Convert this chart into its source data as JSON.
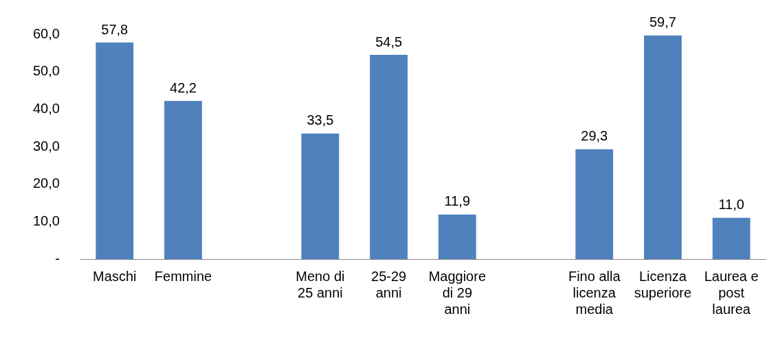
{
  "chart_data": {
    "type": "bar",
    "categories": [
      "Maschi",
      "Femmine",
      null,
      "Meno di 25 anni",
      "25-29 anni",
      "Maggiore di 29 anni",
      null,
      "Fino alla licenza media",
      "Licenza superiore",
      "Laurea e post laurea"
    ],
    "values": [
      57.8,
      42.2,
      null,
      33.5,
      54.5,
      11.9,
      null,
      29.3,
      59.7,
      11.0
    ],
    "value_labels": [
      "57,8",
      "42,2",
      null,
      "33,5",
      "54,5",
      "11,9",
      null,
      "29,3",
      "59,7",
      "11,0"
    ],
    "color": "#4f81bd",
    "ylim": [
      0,
      60
    ],
    "yticks": [
      {
        "value": 0,
        "label": "-"
      },
      {
        "value": 10,
        "label": "10,0"
      },
      {
        "value": 20,
        "label": "20,0"
      },
      {
        "value": 30,
        "label": "30,0"
      },
      {
        "value": 40,
        "label": "40,0"
      },
      {
        "value": 50,
        "label": "50,0"
      },
      {
        "value": 60,
        "label": "60,0"
      }
    ],
    "grid": false,
    "legend": false
  }
}
